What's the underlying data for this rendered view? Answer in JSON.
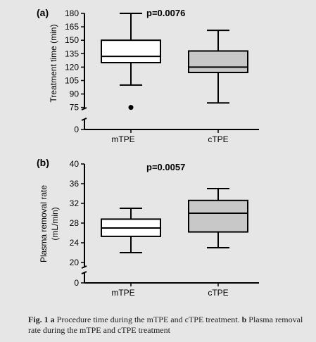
{
  "chart_data": [
    {
      "type": "box",
      "panel_label": "(a)",
      "annotation": "p=0.0076",
      "ylabel": "Treatment time (min)",
      "categories": [
        "mTPE",
        "cTPE"
      ],
      "yticks_upper": [
        "75",
        "90",
        "105",
        "120",
        "135",
        "150",
        "165",
        "180"
      ],
      "ytick_values": [
        75,
        90,
        105,
        120,
        135,
        150,
        165,
        180
      ],
      "ytick_zero": "0",
      "axis_break": true,
      "ylim": [
        70,
        180
      ],
      "boxes": [
        {
          "name": "mTPE",
          "whisker_low": 100,
          "q1": 125,
          "median": 132,
          "q3": 150,
          "whisker_high": 180,
          "outliers": [
            75
          ],
          "fill": "#ffffff"
        },
        {
          "name": "cTPE",
          "whisker_low": 80,
          "q1": 114,
          "median": 120,
          "q3": 138,
          "whisker_high": 161,
          "outliers": [],
          "fill": "#c8c8c8"
        }
      ]
    },
    {
      "type": "box",
      "panel_label": "(b)",
      "annotation": "p=0.0057",
      "ylabel": "Plasma removal rate (mL/min)",
      "ylabel_line1": "Plasma removal rate",
      "ylabel_line2": "(mL/min)",
      "categories": [
        "mTPE",
        "cTPE"
      ],
      "yticks_upper": [
        "20",
        "24",
        "28",
        "32",
        "36",
        "40"
      ],
      "ytick_values": [
        20,
        24,
        28,
        32,
        36,
        40
      ],
      "ytick_zero": "0",
      "axis_break": true,
      "ylim": [
        20,
        40
      ],
      "boxes": [
        {
          "name": "mTPE",
          "whisker_low": 22,
          "q1": 25.3,
          "median": 27,
          "q3": 28.8,
          "whisker_high": 31,
          "outliers": [],
          "fill": "#ffffff"
        },
        {
          "name": "cTPE",
          "whisker_low": 23,
          "q1": 26.2,
          "median": 30,
          "q3": 32.6,
          "whisker_high": 35,
          "outliers": [],
          "fill": "#c8c8c8"
        }
      ]
    }
  ],
  "caption": {
    "label": "Fig. 1",
    "part_a_letter": "a",
    "part_a_text": "Procedure time during the mTPE and cTPE treatment.",
    "part_b_letter": "b",
    "part_b_text": "Plasma removal rate during the mTPE and cTPE treatment"
  }
}
